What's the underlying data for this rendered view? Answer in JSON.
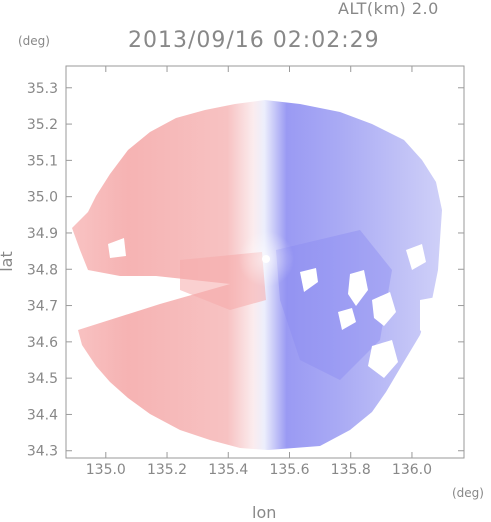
{
  "header": {
    "alt_label": "ALT(km) 2.0",
    "timestamp": "2013/09/16 02:02:29",
    "y_unit": "(deg)",
    "x_unit": "(deg)"
  },
  "colors": {
    "approaching": "#7b7bf0",
    "receding": "#f4a3a3",
    "frame": "#9a9a9a",
    "text": "#888888"
  },
  "chart_data": {
    "type": "heatmap",
    "title": "2013/09/16 02:02:29",
    "subtitle": "ALT(km) 2.0",
    "xlabel": "lon",
    "ylabel": "lat",
    "x_unit": "(deg)",
    "y_unit": "(deg)",
    "xlim": [
      134.87,
      136.17
    ],
    "ylim": [
      34.28,
      35.36
    ],
    "x_ticks": [
      135.0,
      135.2,
      135.4,
      135.6,
      135.8,
      136.0
    ],
    "x_tick_labels": [
      "135.0",
      "135.2",
      "135.4",
      "135.6",
      "135.8",
      "136.0"
    ],
    "y_ticks": [
      34.3,
      34.4,
      34.5,
      34.6,
      34.7,
      34.8,
      34.9,
      35.0,
      35.1,
      35.2,
      35.3
    ],
    "y_tick_labels": [
      "34.3",
      "34.4",
      "34.5",
      "34.6",
      "34.7",
      "34.8",
      "34.9",
      "35.0",
      "35.1",
      "35.2",
      "35.3"
    ],
    "radar_center": {
      "lon": 135.52,
      "lat": 34.82
    },
    "grid": false,
    "field": "Doppler velocity: west half red (receding), east half blue (approaching)"
  }
}
